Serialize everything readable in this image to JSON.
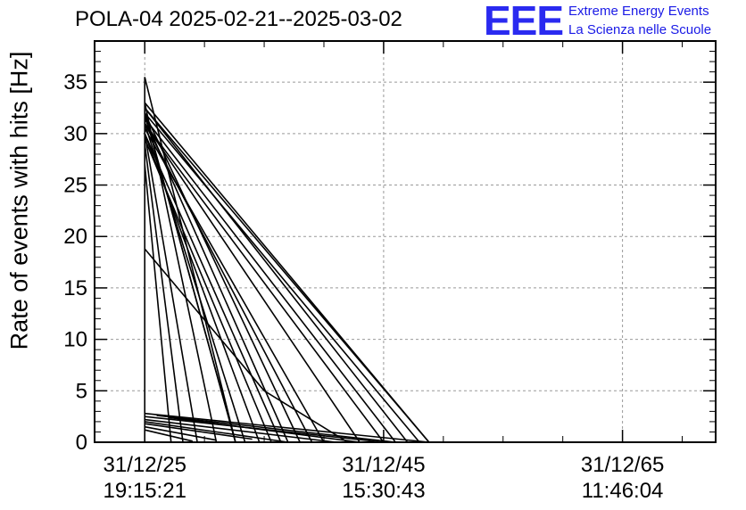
{
  "header": {
    "title": "POLA-04 2025-02-21--2025-03-02",
    "logo_text": "EEE",
    "logo_line1": "Extreme Energy Events",
    "logo_line2": "La Scienza nelle Scuole",
    "logo_color": "#2a2af0"
  },
  "chart_data": {
    "type": "line",
    "title": "POLA-04 2025-02-21--2025-03-02",
    "xlabel": "",
    "ylabel": "Rate of events with hits [Hz]",
    "ylim": [
      0,
      39
    ],
    "yticks": [
      0,
      5,
      10,
      15,
      20,
      25,
      30,
      35
    ],
    "xlim": [
      -0.21,
      2.39
    ],
    "xticks": [
      {
        "value": 0,
        "line1": "31/12/25",
        "line2": "19:15:21"
      },
      {
        "value": 1,
        "line1": "31/12/45",
        "line2": "15:30:43"
      },
      {
        "value": 2,
        "line1": "31/12/65",
        "line2": "11:46:04"
      }
    ],
    "grid": true,
    "line_color": "#000000",
    "series": [
      {
        "x": [
          0,
          0,
          0.38,
          0
        ],
        "y": [
          0,
          35.5,
          0,
          32
        ]
      },
      {
        "x": [
          0,
          1.19
        ],
        "y": [
          33,
          0
        ]
      },
      {
        "x": [
          0,
          1.19
        ],
        "y": [
          32.5,
          0
        ]
      },
      {
        "x": [
          0,
          1.15
        ],
        "y": [
          32,
          0
        ]
      },
      {
        "x": [
          0,
          1.1
        ],
        "y": [
          32.5,
          0
        ]
      },
      {
        "x": [
          0,
          1.05
        ],
        "y": [
          31.5,
          0
        ]
      },
      {
        "x": [
          0,
          1.0
        ],
        "y": [
          31,
          0
        ]
      },
      {
        "x": [
          0,
          0.9
        ],
        "y": [
          31,
          0
        ]
      },
      {
        "x": [
          0,
          0.75
        ],
        "y": [
          30.5,
          0
        ]
      },
      {
        "x": [
          0,
          0.7
        ],
        "y": [
          31,
          0
        ]
      },
      {
        "x": [
          0,
          0.65
        ],
        "y": [
          32,
          0
        ]
      },
      {
        "x": [
          0,
          0.6
        ],
        "y": [
          31.5,
          0
        ]
      },
      {
        "x": [
          0,
          0.57
        ],
        "y": [
          30,
          0
        ]
      },
      {
        "x": [
          0,
          0.53
        ],
        "y": [
          29.5,
          0
        ]
      },
      {
        "x": [
          0,
          0.48
        ],
        "y": [
          30,
          0
        ]
      },
      {
        "x": [
          0,
          0.42
        ],
        "y": [
          31,
          0
        ]
      },
      {
        "x": [
          0,
          0.38
        ],
        "y": [
          32,
          0
        ]
      },
      {
        "x": [
          0,
          0.3
        ],
        "y": [
          33,
          0
        ]
      },
      {
        "x": [
          0,
          0.22
        ],
        "y": [
          30,
          0
        ]
      },
      {
        "x": [
          0,
          0.16
        ],
        "y": [
          29,
          0
        ]
      },
      {
        "x": [
          0,
          0.11
        ],
        "y": [
          27,
          0
        ]
      },
      {
        "x": [
          0,
          0.5
        ],
        "y": [
          18.8,
          5.0
        ]
      },
      {
        "x": [
          0.5,
          0.85
        ],
        "y": [
          5.0,
          0
        ]
      },
      {
        "x": [
          0,
          1.19
        ],
        "y": [
          2.8,
          0
        ]
      },
      {
        "x": [
          0,
          1.0
        ],
        "y": [
          2.5,
          0
        ]
      },
      {
        "x": [
          0,
          0.8
        ],
        "y": [
          2.2,
          0
        ]
      },
      {
        "x": [
          0,
          0.6
        ],
        "y": [
          2.0,
          0
        ]
      },
      {
        "x": [
          0,
          0.45
        ],
        "y": [
          1.8,
          0.3
        ]
      },
      {
        "x": [
          0,
          0.3
        ],
        "y": [
          1.5,
          0.2
        ]
      },
      {
        "x": [
          0,
          0.2
        ],
        "y": [
          1.2,
          0.1
        ]
      },
      {
        "x": [
          0.05,
          1.05
        ],
        "y": [
          2.6,
          0
        ]
      },
      {
        "x": [
          0.1,
          0.9
        ],
        "y": [
          2.4,
          0
        ]
      }
    ]
  }
}
